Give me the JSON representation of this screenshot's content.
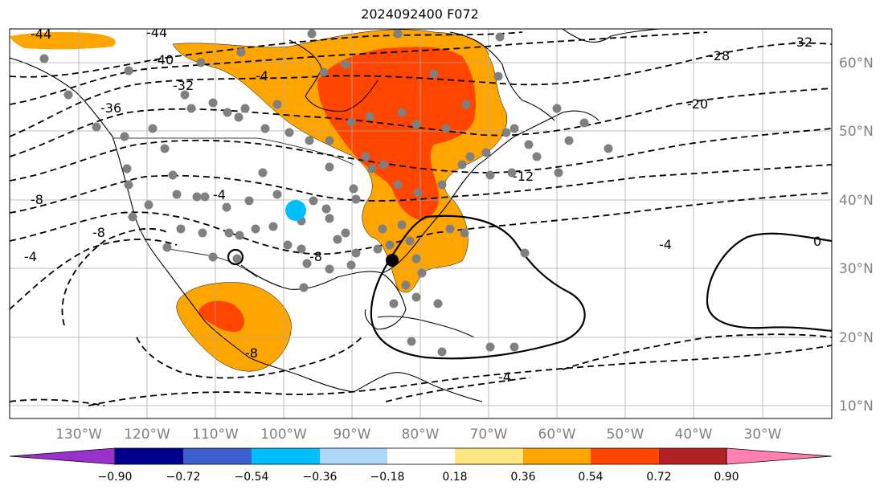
{
  "title": "2024092400 F072",
  "map": {
    "projection": "PlateCarree",
    "lon_labels": [
      "130°W",
      "120°W",
      "110°W",
      "100°W",
      "90°W",
      "80°W",
      "70°W",
      "60°W",
      "50°W",
      "40°W",
      "30°W"
    ],
    "lat_labels": [
      "60°N",
      "50°N",
      "40°N",
      "30°N",
      "20°N",
      "10°N"
    ],
    "gridlines": true,
    "contour_style": "dashed negative, solid zero/positive",
    "contour_labels": [
      "-44",
      "-44",
      "-40",
      "-36",
      "-32",
      "-32",
      "-28",
      "-20",
      "-12",
      "-8",
      "-8",
      "-8",
      "-8",
      "-4",
      "-4",
      "-4",
      "-4",
      "-4",
      "0"
    ],
    "shading_colors": [
      "#ffa500",
      "#ff4500"
    ],
    "station_marker_color": "#808080",
    "highlight_markers": [
      {
        "name": "blue-station",
        "color": "#00bfff"
      },
      {
        "name": "black-station",
        "color": "#000000"
      }
    ]
  },
  "colorbar": {
    "ticks": [
      "−0.90",
      "−0.72",
      "−0.54",
      "−0.36",
      "−0.18",
      "0.18",
      "0.36",
      "0.54",
      "0.72",
      "0.90"
    ],
    "colors": [
      "#9932cc",
      "#00008b",
      "#3b5fcf",
      "#00bfff",
      "#add8f5",
      "#ffffff",
      "#ffe680",
      "#ffa500",
      "#ff4500",
      "#b22222",
      "#ff80b0"
    ]
  }
}
